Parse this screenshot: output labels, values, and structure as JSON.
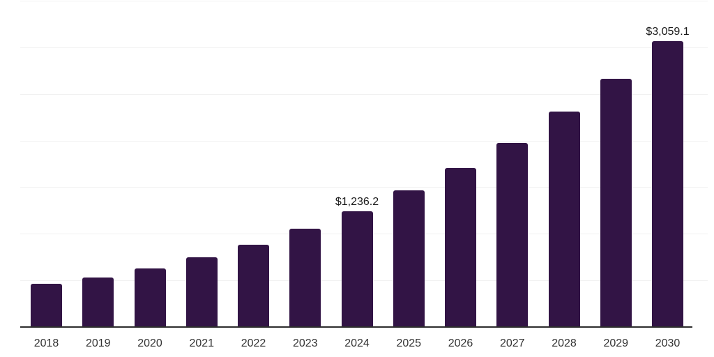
{
  "chart_data": {
    "type": "bar",
    "title": "",
    "xlabel": "",
    "ylabel": "",
    "categories": [
      "2018",
      "2019",
      "2020",
      "2021",
      "2022",
      "2023",
      "2024",
      "2025",
      "2026",
      "2027",
      "2028",
      "2029",
      "2030"
    ],
    "values": [
      460,
      523,
      620,
      740,
      873,
      1045,
      1236.2,
      1455,
      1695,
      1970,
      2300,
      2655,
      3059.1
    ],
    "labeled_points": [
      {
        "category": "2024",
        "label": "$1,236.2"
      },
      {
        "category": "2030",
        "label": "$3,059.1"
      }
    ],
    "ylim": [
      0,
      3500
    ],
    "gridline_interval": 500,
    "grid": "horizontal",
    "legend": "none",
    "y_axis_ticks_visible": false,
    "colors": {
      "bar": "#321445",
      "axis_line": "#2d2d2d",
      "gridline": "#f1f1f1",
      "value_label": "#1a1a1a",
      "tick_label": "#333333",
      "background": "#ffffff"
    }
  }
}
